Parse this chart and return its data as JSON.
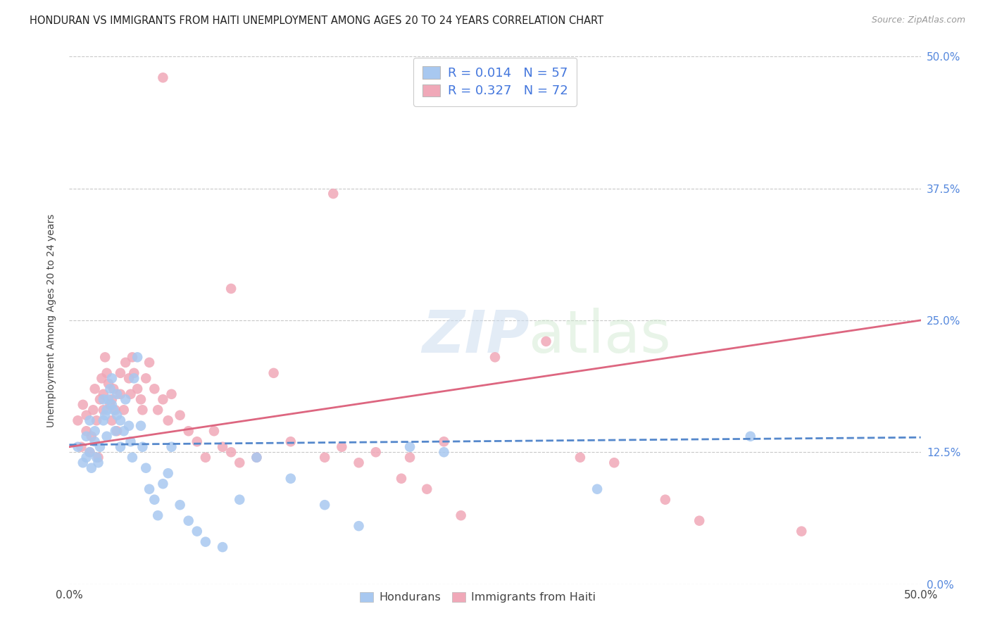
{
  "title": "HONDURAN VS IMMIGRANTS FROM HAITI UNEMPLOYMENT AMONG AGES 20 TO 24 YEARS CORRELATION CHART",
  "source": "Source: ZipAtlas.com",
  "ylabel": "Unemployment Among Ages 20 to 24 years",
  "xlim": [
    0.0,
    0.5
  ],
  "ylim": [
    0.0,
    0.5
  ],
  "xtick_labels": [
    "0.0%",
    "50.0%"
  ],
  "ytick_values": [
    0.0,
    0.125,
    0.25,
    0.375,
    0.5
  ],
  "ytick_labels": [
    "0.0%",
    "12.5%",
    "25.0%",
    "37.5%",
    "50.0%"
  ],
  "grid_color": "#c8c8c8",
  "background_color": "#ffffff",
  "hondurans_color": "#a8c8f0",
  "haiti_color": "#f0a8b8",
  "hondurans_line_color": "#5588cc",
  "haiti_line_color": "#dd6680",
  "R_hondurans": 0.014,
  "N_hondurans": 57,
  "R_haiti": 0.327,
  "N_haiti": 72,
  "watermark_zip": "ZIP",
  "watermark_atlas": "atlas",
  "legend_color": "#4477dd",
  "hondurans_scatter_x": [
    0.005,
    0.008,
    0.01,
    0.01,
    0.012,
    0.012,
    0.013,
    0.015,
    0.015,
    0.016,
    0.017,
    0.018,
    0.02,
    0.02,
    0.021,
    0.022,
    0.022,
    0.023,
    0.024,
    0.025,
    0.025,
    0.026,
    0.027,
    0.028,
    0.028,
    0.03,
    0.03,
    0.032,
    0.033,
    0.035,
    0.036,
    0.037,
    0.038,
    0.04,
    0.042,
    0.043,
    0.045,
    0.047,
    0.05,
    0.052,
    0.055,
    0.058,
    0.06,
    0.065,
    0.07,
    0.075,
    0.08,
    0.09,
    0.1,
    0.11,
    0.13,
    0.15,
    0.17,
    0.2,
    0.22,
    0.31,
    0.4
  ],
  "hondurans_scatter_y": [
    0.13,
    0.115,
    0.14,
    0.12,
    0.125,
    0.155,
    0.11,
    0.145,
    0.135,
    0.12,
    0.115,
    0.13,
    0.175,
    0.155,
    0.16,
    0.165,
    0.14,
    0.175,
    0.185,
    0.17,
    0.195,
    0.165,
    0.145,
    0.18,
    0.16,
    0.155,
    0.13,
    0.145,
    0.175,
    0.15,
    0.135,
    0.12,
    0.195,
    0.215,
    0.15,
    0.13,
    0.11,
    0.09,
    0.08,
    0.065,
    0.095,
    0.105,
    0.13,
    0.075,
    0.06,
    0.05,
    0.04,
    0.035,
    0.08,
    0.12,
    0.1,
    0.075,
    0.055,
    0.13,
    0.125,
    0.09,
    0.14
  ],
  "haiti_scatter_x": [
    0.005,
    0.007,
    0.008,
    0.01,
    0.01,
    0.012,
    0.013,
    0.014,
    0.015,
    0.016,
    0.017,
    0.018,
    0.019,
    0.02,
    0.02,
    0.021,
    0.022,
    0.023,
    0.024,
    0.025,
    0.025,
    0.026,
    0.027,
    0.028,
    0.03,
    0.03,
    0.032,
    0.033,
    0.035,
    0.036,
    0.037,
    0.038,
    0.04,
    0.042,
    0.043,
    0.045,
    0.047,
    0.05,
    0.052,
    0.055,
    0.058,
    0.06,
    0.065,
    0.07,
    0.075,
    0.08,
    0.085,
    0.09,
    0.095,
    0.1,
    0.11,
    0.12,
    0.13,
    0.15,
    0.16,
    0.18,
    0.2,
    0.22,
    0.25,
    0.28,
    0.3,
    0.32,
    0.35,
    0.37,
    0.055,
    0.095,
    0.155,
    0.17,
    0.195,
    0.21,
    0.23,
    0.43
  ],
  "haiti_scatter_y": [
    0.155,
    0.13,
    0.17,
    0.145,
    0.16,
    0.125,
    0.14,
    0.165,
    0.185,
    0.155,
    0.12,
    0.175,
    0.195,
    0.165,
    0.18,
    0.215,
    0.2,
    0.19,
    0.17,
    0.175,
    0.155,
    0.185,
    0.165,
    0.145,
    0.18,
    0.2,
    0.165,
    0.21,
    0.195,
    0.18,
    0.215,
    0.2,
    0.185,
    0.175,
    0.165,
    0.195,
    0.21,
    0.185,
    0.165,
    0.175,
    0.155,
    0.18,
    0.16,
    0.145,
    0.135,
    0.12,
    0.145,
    0.13,
    0.125,
    0.115,
    0.12,
    0.2,
    0.135,
    0.12,
    0.13,
    0.125,
    0.12,
    0.135,
    0.215,
    0.23,
    0.12,
    0.115,
    0.08,
    0.06,
    0.48,
    0.28,
    0.37,
    0.115,
    0.1,
    0.09,
    0.065,
    0.05
  ],
  "hondurans_trendline_x": [
    0.0,
    0.5
  ],
  "hondurans_trendline_y": [
    0.132,
    0.139
  ],
  "haiti_trendline_x": [
    0.0,
    0.5
  ],
  "haiti_trendline_y": [
    0.13,
    0.25
  ]
}
